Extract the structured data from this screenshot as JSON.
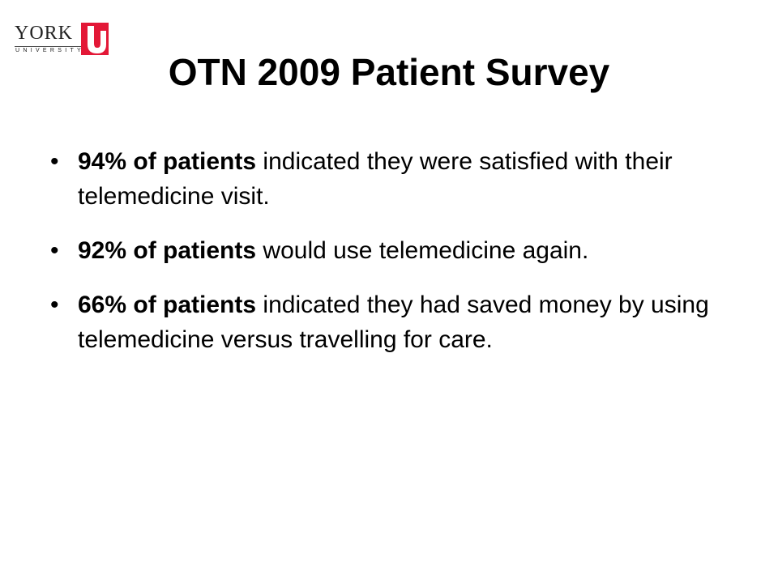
{
  "logo": {
    "name": "YORK",
    "subtitle": "UNIVERSITY"
  },
  "title": "OTN 2009 Patient Survey",
  "bullets": [
    {
      "bold": "94% of patients",
      "text": "indicated they were satisfied with their telemedicine visit."
    },
    {
      "bold": "92% of patients",
      "text": "would use telemedicine again."
    },
    {
      "bold": "66% of patients",
      "text": "indicated they had saved money by using telemedicine versus travelling for care."
    }
  ]
}
